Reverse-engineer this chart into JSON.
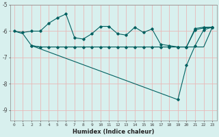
{
  "xlabel": "Humidex (Indice chaleur)",
  "bg_color": "#d8f0ee",
  "grid_color": "#e8b8b8",
  "line_color": "#006060",
  "xlim": [
    -0.5,
    23.5
  ],
  "ylim": [
    -9.4,
    -5.1
  ],
  "yticks": [
    -9,
    -8,
    -7,
    -6,
    -5
  ],
  "xticks": [
    0,
    1,
    2,
    3,
    4,
    5,
    6,
    7,
    8,
    9,
    10,
    11,
    12,
    13,
    14,
    15,
    16,
    17,
    18,
    19,
    20,
    21,
    22,
    23
  ],
  "line1_x": [
    0,
    1,
    2,
    3,
    4,
    5,
    6,
    7,
    8,
    9,
    10,
    11,
    12,
    13,
    14,
    15,
    16,
    17,
    18,
    19,
    20,
    21,
    22,
    23
  ],
  "line1_y": [
    -6.0,
    -6.05,
    -6.0,
    -6.0,
    -5.7,
    -5.5,
    -5.35,
    -6.25,
    -6.3,
    -6.1,
    -5.82,
    -5.82,
    -6.1,
    -6.15,
    -5.85,
    -6.05,
    -5.92,
    -6.5,
    -6.55,
    -6.6,
    -6.6,
    -5.95,
    -5.88,
    -5.85
  ],
  "line2_x": [
    0,
    1,
    2,
    3,
    4,
    5,
    6,
    7,
    8,
    9,
    10,
    11,
    12,
    13,
    14,
    15,
    16,
    17,
    18,
    19,
    20,
    21,
    22,
    23
  ],
  "line2_y": [
    -6.0,
    -6.1,
    -6.55,
    -6.6,
    -6.6,
    -6.6,
    -6.6,
    -6.6,
    -6.6,
    -6.6,
    -6.6,
    -6.6,
    -6.6,
    -6.6,
    -6.6,
    -6.6,
    -6.6,
    -6.6,
    -6.6,
    -6.6,
    -6.6,
    -6.6,
    -6.6,
    -5.85
  ],
  "line3_x": [
    2,
    3,
    4,
    5,
    6,
    7,
    8,
    9,
    10,
    11,
    12,
    13,
    14,
    15,
    16,
    17,
    18,
    19,
    20,
    21,
    22,
    23
  ],
  "line3_y": [
    -6.55,
    -6.6,
    -6.6,
    -6.6,
    -6.6,
    -6.6,
    -6.6,
    -6.6,
    -6.6,
    -6.6,
    -6.6,
    -6.6,
    -6.6,
    -6.6,
    -6.6,
    -6.6,
    -6.6,
    -6.6,
    -6.6,
    -5.9,
    -5.85,
    -5.85
  ],
  "line4_x": [
    2,
    19,
    20,
    21,
    22,
    23
  ],
  "line4_y": [
    -6.55,
    -8.6,
    -7.3,
    -6.55,
    -5.95,
    -5.85
  ]
}
